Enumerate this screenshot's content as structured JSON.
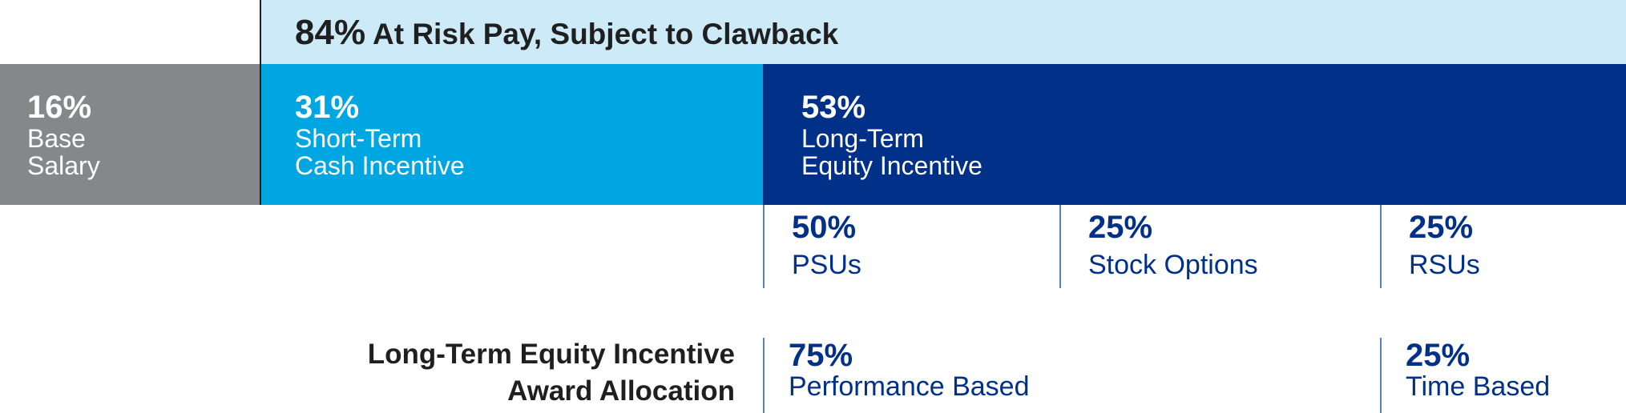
{
  "chart_data": {
    "type": "bar",
    "layout": "stacked-horizontal",
    "title": "",
    "categories": [
      "Base Salary",
      "Short-Term Cash Incentive",
      "Long-Term Equity Incentive"
    ],
    "values": [
      16,
      31,
      53
    ],
    "value_labels": [
      "16%",
      "31%",
      "53%"
    ],
    "colors": [
      "#858789",
      "#00a6e1",
      "#003087"
    ],
    "at_risk": {
      "value": 84,
      "pct_label": "84%",
      "label": "At Risk Pay, Subject to Clawback",
      "color": "#cdeaf8"
    },
    "equity_breakdown": [
      {
        "label": "PSUs",
        "value": 50,
        "pct_label": "50%"
      },
      {
        "label": "Stock Options",
        "value": 25,
        "pct_label": "25%"
      },
      {
        "label": "RSUs",
        "value": 25,
        "pct_label": "25%"
      }
    ],
    "award_allocation": {
      "label_line1": "Long-Term Equity Incentive",
      "label_line2": "Award Allocation",
      "items": [
        {
          "label": "Performance Based",
          "value": 75,
          "pct_label": "75%"
        },
        {
          "label": "Time Based",
          "value": 25,
          "pct_label": "25%"
        }
      ]
    }
  },
  "labels": {
    "base_line1": "Base",
    "base_line2": "Salary",
    "short_line1": "Short-Term",
    "short_line2": "Cash Incentive",
    "long_line1": "Long-Term",
    "long_line2": "Equity Incentive"
  }
}
